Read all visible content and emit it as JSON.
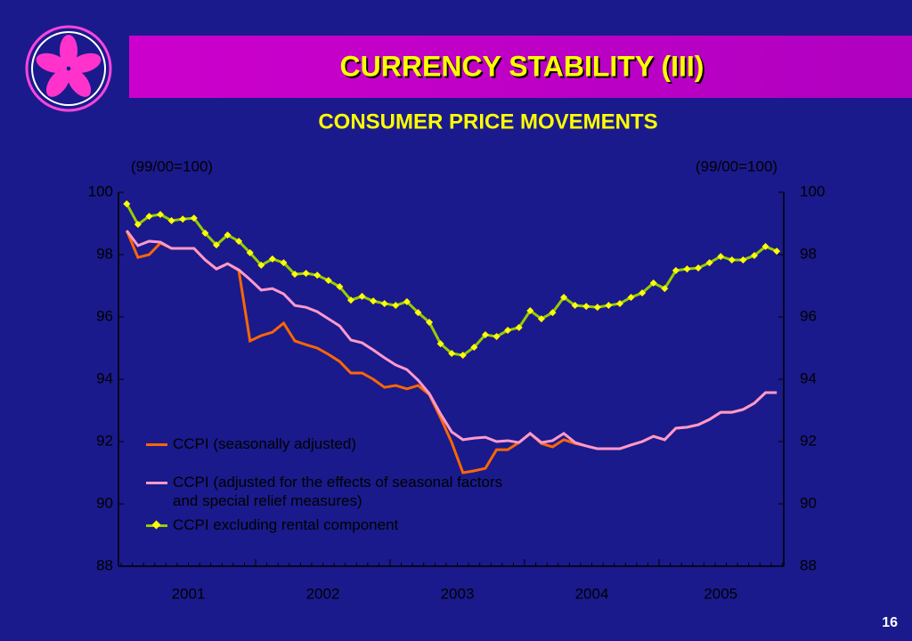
{
  "slide": {
    "title": "CURRENCY STABILITY  (III)",
    "page_number": "16"
  },
  "chart_data": {
    "type": "line",
    "title": "CONSUMER PRICE MOVEMENTS",
    "ylabel": "(99/00=100)",
    "y2label": "(99/00=100)",
    "ylim": [
      88,
      100
    ],
    "yticks": [
      88,
      90,
      92,
      94,
      96,
      98,
      100
    ],
    "y2lim": [
      88,
      100
    ],
    "y2ticks": [
      88,
      90,
      92,
      94,
      96,
      98,
      100
    ],
    "x_labels": [
      "2001",
      "2002",
      "2003",
      "2004",
      "2005"
    ],
    "series": [
      {
        "name": "CCPI (seasonally adjusted)",
        "color": "#ff6600",
        "values": [
          98.77,
          97.91,
          98.0,
          98.37,
          98.2,
          98.2,
          98.2,
          97.83,
          97.54,
          97.71,
          97.49,
          95.23,
          95.4,
          95.51,
          95.8,
          95.23,
          95.11,
          95.0,
          94.8,
          94.57,
          94.2,
          94.2,
          94.0,
          93.74,
          93.8,
          93.69,
          93.8,
          93.51,
          92.77,
          91.97,
          91.0,
          91.06,
          91.14,
          91.74,
          91.74,
          91.97,
          92.26,
          91.94,
          91.83,
          92.06,
          91.94,
          91.86,
          91.77,
          91.77,
          91.77,
          91.89,
          92.0,
          92.17,
          92.06,
          92.43,
          92.46,
          92.54,
          92.71,
          92.94,
          92.94,
          93.03,
          93.23,
          93.57,
          93.57
        ]
      },
      {
        "name": "CCPI (adjusted for the effects of seasonal factors and special relief measures)",
        "color": "#ff99cc",
        "values": [
          98.77,
          98.29,
          98.43,
          98.4,
          98.2,
          98.2,
          98.2,
          97.83,
          97.54,
          97.71,
          97.51,
          97.2,
          96.86,
          96.91,
          96.74,
          96.37,
          96.31,
          96.17,
          95.94,
          95.71,
          95.26,
          95.17,
          94.94,
          94.69,
          94.46,
          94.31,
          93.97,
          93.54,
          92.89,
          92.31,
          92.06,
          92.11,
          92.14,
          92.0,
          92.03,
          91.97,
          92.26,
          91.97,
          92.03,
          92.26,
          91.97,
          91.86,
          91.77,
          91.77,
          91.77,
          91.89,
          92.0,
          92.17,
          92.06,
          92.43,
          92.46,
          92.54,
          92.71,
          92.94,
          92.94,
          93.03,
          93.23,
          93.57,
          93.57
        ]
      },
      {
        "name": "CCPI excluding rental component",
        "color": "#99cc00",
        "marker_color": "#ffff00",
        "values": [
          99.63,
          98.97,
          99.23,
          99.29,
          99.09,
          99.14,
          99.17,
          98.69,
          98.31,
          98.63,
          98.43,
          98.06,
          97.66,
          97.86,
          97.74,
          97.37,
          97.4,
          97.34,
          97.17,
          96.97,
          96.54,
          96.66,
          96.51,
          96.43,
          96.37,
          96.49,
          96.14,
          95.83,
          95.14,
          94.83,
          94.77,
          95.03,
          95.43,
          95.37,
          95.57,
          95.66,
          96.2,
          95.94,
          96.14,
          96.63,
          96.37,
          96.34,
          96.31,
          96.37,
          96.43,
          96.63,
          96.77,
          97.09,
          96.91,
          97.49,
          97.54,
          97.57,
          97.74,
          97.94,
          97.83,
          97.83,
          97.97,
          98.26,
          98.11
        ]
      }
    ]
  }
}
